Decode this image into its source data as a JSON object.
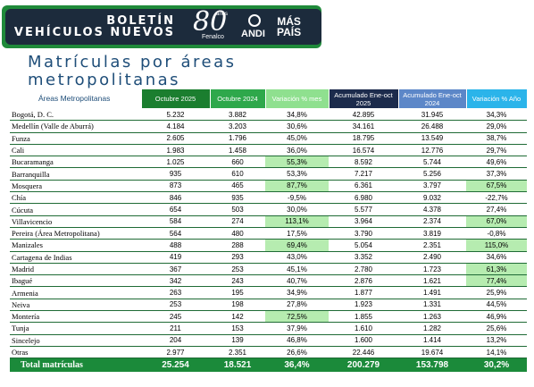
{
  "banner": {
    "title_line1": "BOLETÍN",
    "title_line2": "VEHÍCULOS NUEVOS",
    "logo_fenalco_number": "80",
    "logo_fenalco_years": "años",
    "logo_fenalco_name": "Fenalco",
    "logo_andi": "ANDI",
    "logo_maspais_line1": "MÁS",
    "logo_maspais_line2": "PAÍS"
  },
  "subtitle": {
    "line1": "Matrículas por áreas",
    "line2": "metropolitanas"
  },
  "table": {
    "headers": {
      "area": "Áreas Metropolitanas",
      "c1": "Octubre 2025",
      "c2": "Octubre 2024",
      "c3": "Variación % mes",
      "c4": "Acumulado Ene-oct 2025",
      "c5": "Acumulado Ene-oct 2024",
      "c6": "Variación % Año"
    },
    "rows": [
      {
        "area": "Bogotá, D. C.",
        "oct25": "5.232",
        "oct24": "3.882",
        "var_mes": "34,8%",
        "acum25": "42.895",
        "acum24": "31.945",
        "var_anio": "34,3%",
        "hl_mes": false,
        "hl_anio": false
      },
      {
        "area": "Medellín (Valle de Aburrá)",
        "oct25": "4.184",
        "oct24": "3.203",
        "var_mes": "30,6%",
        "acum25": "34.161",
        "acum24": "26.488",
        "var_anio": "29,0%",
        "hl_mes": false,
        "hl_anio": false
      },
      {
        "area": "Funza",
        "oct25": "2.605",
        "oct24": "1.796",
        "var_mes": "45,0%",
        "acum25": "18.795",
        "acum24": "13.549",
        "var_anio": "38,7%",
        "hl_mes": false,
        "hl_anio": false
      },
      {
        "area": "Cali",
        "oct25": "1.983",
        "oct24": "1.458",
        "var_mes": "36,0%",
        "acum25": "16.574",
        "acum24": "12.776",
        "var_anio": "29,7%",
        "hl_mes": false,
        "hl_anio": false
      },
      {
        "area": "Bucaramanga",
        "oct25": "1.025",
        "oct24": "660",
        "var_mes": "55,3%",
        "acum25": "8.592",
        "acum24": "5.744",
        "var_anio": "49,6%",
        "hl_mes": true,
        "hl_anio": false
      },
      {
        "area": "Barranquilla",
        "oct25": "935",
        "oct24": "610",
        "var_mes": "53,3%",
        "acum25": "7.217",
        "acum24": "5.256",
        "var_anio": "37,3%",
        "hl_mes": false,
        "hl_anio": false
      },
      {
        "area": "Mosquera",
        "oct25": "873",
        "oct24": "465",
        "var_mes": "87,7%",
        "acum25": "6.361",
        "acum24": "3.797",
        "var_anio": "67,5%",
        "hl_mes": true,
        "hl_anio": true
      },
      {
        "area": "Chía",
        "oct25": "846",
        "oct24": "935",
        "var_mes": "-9,5%",
        "acum25": "6.980",
        "acum24": "9.032",
        "var_anio": "-22,7%",
        "hl_mes": false,
        "hl_anio": false
      },
      {
        "area": "Cúcuta",
        "oct25": "654",
        "oct24": "503",
        "var_mes": "30,0%",
        "acum25": "5.577",
        "acum24": "4.378",
        "var_anio": "27,4%",
        "hl_mes": false,
        "hl_anio": false
      },
      {
        "area": "Villavicencio",
        "oct25": "584",
        "oct24": "274",
        "var_mes": "113,1%",
        "acum25": "3.964",
        "acum24": "2.374",
        "var_anio": "67,0%",
        "hl_mes": true,
        "hl_anio": true
      },
      {
        "area": "Pereira (Área Metropolitana)",
        "oct25": "564",
        "oct24": "480",
        "var_mes": "17,5%",
        "acum25": "3.790",
        "acum24": "3.819",
        "var_anio": "-0,8%",
        "hl_mes": false,
        "hl_anio": false
      },
      {
        "area": "Manizales",
        "oct25": "488",
        "oct24": "288",
        "var_mes": "69,4%",
        "acum25": "5.054",
        "acum24": "2.351",
        "var_anio": "115,0%",
        "hl_mes": true,
        "hl_anio": true
      },
      {
        "area": "Cartagena de Indias",
        "oct25": "419",
        "oct24": "293",
        "var_mes": "43,0%",
        "acum25": "3.352",
        "acum24": "2.490",
        "var_anio": "34,6%",
        "hl_mes": false,
        "hl_anio": false
      },
      {
        "area": "Madrid",
        "oct25": "367",
        "oct24": "253",
        "var_mes": "45,1%",
        "acum25": "2.780",
        "acum24": "1.723",
        "var_anio": "61,3%",
        "hl_mes": false,
        "hl_anio": true
      },
      {
        "area": "Ibagué",
        "oct25": "342",
        "oct24": "243",
        "var_mes": "40,7%",
        "acum25": "2.876",
        "acum24": "1.621",
        "var_anio": "77,4%",
        "hl_mes": false,
        "hl_anio": true
      },
      {
        "area": "Armenia",
        "oct25": "263",
        "oct24": "195",
        "var_mes": "34,9%",
        "acum25": "1.877",
        "acum24": "1.491",
        "var_anio": "25,9%",
        "hl_mes": false,
        "hl_anio": false
      },
      {
        "area": "Neiva",
        "oct25": "253",
        "oct24": "198",
        "var_mes": "27,8%",
        "acum25": "1.923",
        "acum24": "1.331",
        "var_anio": "44,5%",
        "hl_mes": false,
        "hl_anio": false
      },
      {
        "area": "Montería",
        "oct25": "245",
        "oct24": "142",
        "var_mes": "72,5%",
        "acum25": "1.855",
        "acum24": "1.263",
        "var_anio": "46,9%",
        "hl_mes": true,
        "hl_anio": false
      },
      {
        "area": "Tunja",
        "oct25": "211",
        "oct24": "153",
        "var_mes": "37,9%",
        "acum25": "1.610",
        "acum24": "1.282",
        "var_anio": "25,6%",
        "hl_mes": false,
        "hl_anio": false
      },
      {
        "area": "Sincelejo",
        "oct25": "204",
        "oct24": "139",
        "var_mes": "46,8%",
        "acum25": "1.600",
        "acum24": "1.414",
        "var_anio": "13,2%",
        "hl_mes": false,
        "hl_anio": false
      },
      {
        "area": "Otras",
        "oct25": "2.977",
        "oct24": "2.351",
        "var_mes": "26,6%",
        "acum25": "22.446",
        "acum24": "19.674",
        "var_anio": "14,1%",
        "hl_mes": false,
        "hl_anio": false
      }
    ],
    "total": {
      "area": "Total matrículas",
      "oct25": "25.254",
      "oct24": "18.521",
      "var_mes": "36,4%",
      "acum25": "200.279",
      "acum24": "153.798",
      "var_anio": "30,2%"
    }
  },
  "colors": {
    "banner_green": "#1f8a3a",
    "banner_navy": "#1c2b3c",
    "header_oct25": "#1b7e2f",
    "header_oct24": "#2ea84b",
    "header_var_mes": "#8fe08f",
    "header_acum25": "#1c2b4c",
    "header_acum24": "#5c87c8",
    "header_var_anio": "#2bb4ea",
    "highlight": "#b6ecb0",
    "total_row": "#1b8a3a"
  }
}
